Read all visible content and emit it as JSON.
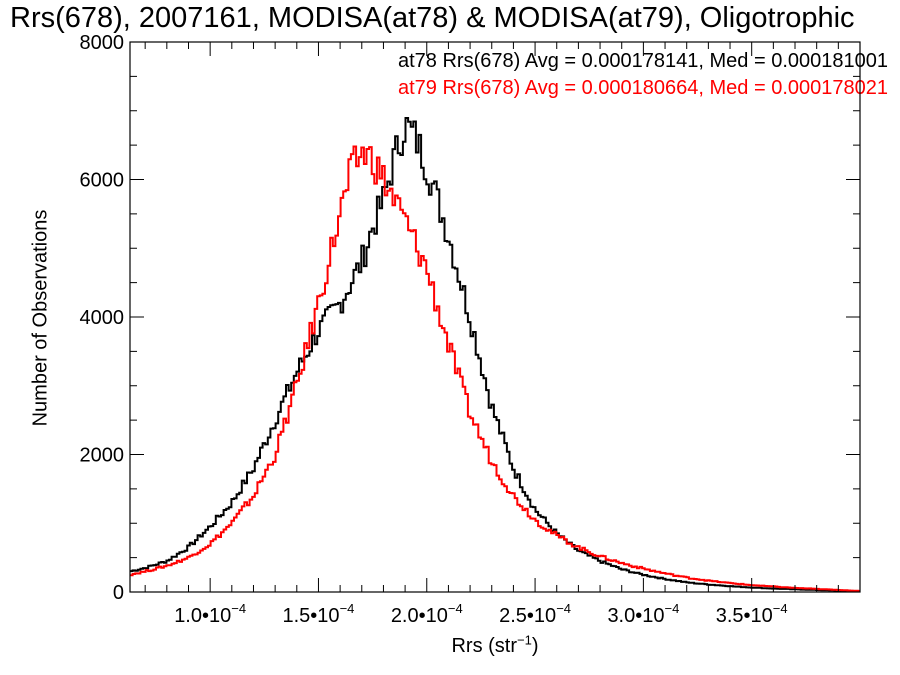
{
  "chart_data": {
    "type": "line",
    "title": "Rrs(678), 2007161, MODISA(at78) & MODISA(at79), Oligotrophic",
    "xlabel_prefix": "Rrs (str",
    "xlabel_sup": "−1",
    "xlabel_suffix": ")",
    "ylabel": "Number of Observations",
    "xlim": [
      6.3e-05,
      0.0004
    ],
    "ylim": [
      0,
      8000
    ],
    "x_ticks": [
      0.0001,
      0.00015,
      0.0002,
      0.00025,
      0.0003,
      0.00035
    ],
    "x_tick_labels": [
      {
        "mant": "1.0•10",
        "exp": "−4"
      },
      {
        "mant": "1.5•10",
        "exp": "−4"
      },
      {
        "mant": "2.0•10",
        "exp": "−4"
      },
      {
        "mant": "2.5•10",
        "exp": "−4"
      },
      {
        "mant": "3.0•10",
        "exp": "−4"
      },
      {
        "mant": "3.5•10",
        "exp": "−4"
      }
    ],
    "y_ticks": [
      0,
      2000,
      4000,
      6000,
      8000
    ],
    "y_tick_labels": [
      "0",
      "2000",
      "4000",
      "6000",
      "8000"
    ],
    "grid": false,
    "legend_placement": "top-right",
    "series": [
      {
        "name": "at78",
        "legend": "at78 Rrs(678) Avg = 0.000178141, Med = 0.000181001",
        "color": "#000000",
        "points": [
          [
            6.3e-05,
            300
          ],
          [
            7e-05,
            350
          ],
          [
            8e-05,
            450
          ],
          [
            9e-05,
            650
          ],
          [
            0.0001,
            950
          ],
          [
            0.00011,
            1300
          ],
          [
            0.00012,
            1800
          ],
          [
            0.00013,
            2500
          ],
          [
            0.00014,
            3200
          ],
          [
            0.00015,
            3800
          ],
          [
            0.00016,
            4200
          ],
          [
            0.00017,
            4800
          ],
          [
            0.000175,
            5300
          ],
          [
            0.00018,
            5700
          ],
          [
            0.000185,
            6300
          ],
          [
            0.00019,
            6800
          ],
          [
            0.000195,
            6600
          ],
          [
            0.0002,
            6200
          ],
          [
            0.00021,
            5200
          ],
          [
            0.00022,
            4000
          ],
          [
            0.00023,
            2700
          ],
          [
            0.00024,
            1800
          ],
          [
            0.00025,
            1200
          ],
          [
            0.00026,
            850
          ],
          [
            0.00027,
            600
          ],
          [
            0.00028,
            450
          ],
          [
            0.00029,
            330
          ],
          [
            0.0003,
            250
          ],
          [
            0.00031,
            190
          ],
          [
            0.00032,
            140
          ],
          [
            0.00033,
            110
          ],
          [
            0.00034,
            85
          ],
          [
            0.00035,
            65
          ],
          [
            0.00036,
            50
          ],
          [
            0.00037,
            40
          ],
          [
            0.00038,
            30
          ],
          [
            0.00039,
            20
          ],
          [
            0.0004,
            10
          ]
        ]
      },
      {
        "name": "at79",
        "legend": "at79 Rrs(678) Avg = 0.000180664, Med = 0.000178021",
        "color": "#ff0000",
        "points": [
          [
            6.3e-05,
            250
          ],
          [
            7e-05,
            300
          ],
          [
            8e-05,
            380
          ],
          [
            9e-05,
            500
          ],
          [
            0.0001,
            700
          ],
          [
            0.00011,
            1000
          ],
          [
            0.00012,
            1400
          ],
          [
            0.00013,
            2000
          ],
          [
            0.00014,
            3000
          ],
          [
            0.00015,
            4200
          ],
          [
            0.00016,
            5500
          ],
          [
            0.000165,
            6100
          ],
          [
            0.00017,
            6400
          ],
          [
            0.000175,
            6300
          ],
          [
            0.00018,
            6000
          ],
          [
            0.000185,
            5700
          ],
          [
            0.00019,
            5400
          ],
          [
            0.0002,
            4700
          ],
          [
            0.00021,
            3600
          ],
          [
            0.00022,
            2600
          ],
          [
            0.00023,
            1900
          ],
          [
            0.00024,
            1400
          ],
          [
            0.00025,
            1050
          ],
          [
            0.00026,
            820
          ],
          [
            0.00027,
            650
          ],
          [
            0.00028,
            520
          ],
          [
            0.00029,
            420
          ],
          [
            0.0003,
            340
          ],
          [
            0.00031,
            270
          ],
          [
            0.00032,
            210
          ],
          [
            0.00033,
            165
          ],
          [
            0.00034,
            130
          ],
          [
            0.00035,
            100
          ],
          [
            0.00036,
            80
          ],
          [
            0.00037,
            60
          ],
          [
            0.00038,
            45
          ],
          [
            0.00039,
            30
          ],
          [
            0.0004,
            15
          ]
        ]
      }
    ]
  }
}
